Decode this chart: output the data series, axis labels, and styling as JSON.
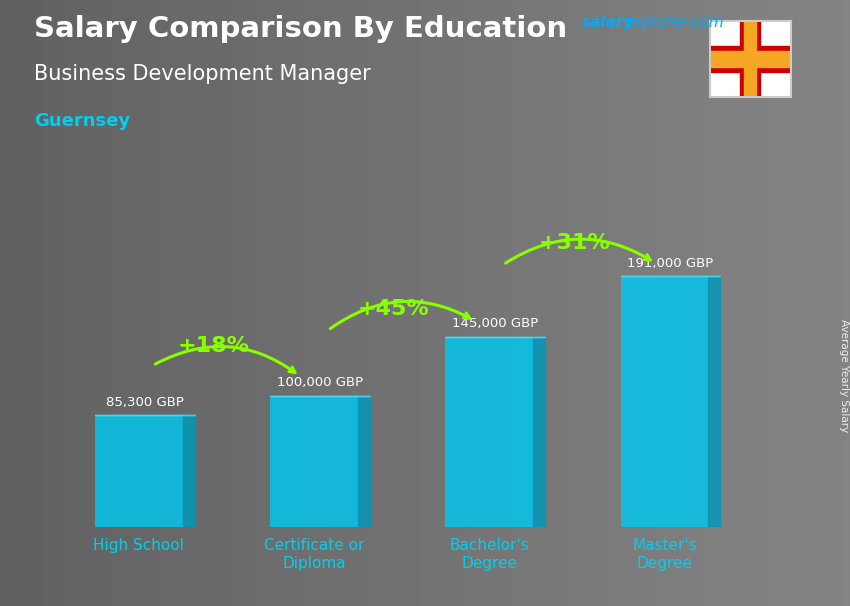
{
  "title_main": "Salary Comparison By Education",
  "subtitle": "Business Development Manager",
  "location": "Guernsey",
  "watermark_salary": "salary",
  "watermark_rest": "explorer.com",
  "ylabel": "Average Yearly Salary",
  "categories": [
    "High School",
    "Certificate or\nDiploma",
    "Bachelor's\nDegree",
    "Master's\nDegree"
  ],
  "values": [
    85300,
    100000,
    145000,
    191000
  ],
  "value_labels": [
    "85,300 GBP",
    "100,000 GBP",
    "145,000 GBP",
    "191,000 GBP"
  ],
  "pct_changes": [
    "+18%",
    "+45%",
    "+31%"
  ],
  "bar_color_face": "#00c8f0",
  "bar_side_color": "#0099bb",
  "bar_top_color": "#55ddf5",
  "bar_alpha": 0.82,
  "bg_color": "#6b6b6b",
  "title_color": "#ffffff",
  "subtitle_color": "#ffffff",
  "location_color": "#00d0f0",
  "value_label_color": "#ffffff",
  "pct_color": "#88ff00",
  "arrow_color": "#88ff00",
  "xtick_color": "#00d0f0",
  "watermark_color": "#00aaff",
  "ylim": [
    0,
    240000
  ],
  "figsize": [
    8.5,
    6.06
  ],
  "dpi": 100
}
